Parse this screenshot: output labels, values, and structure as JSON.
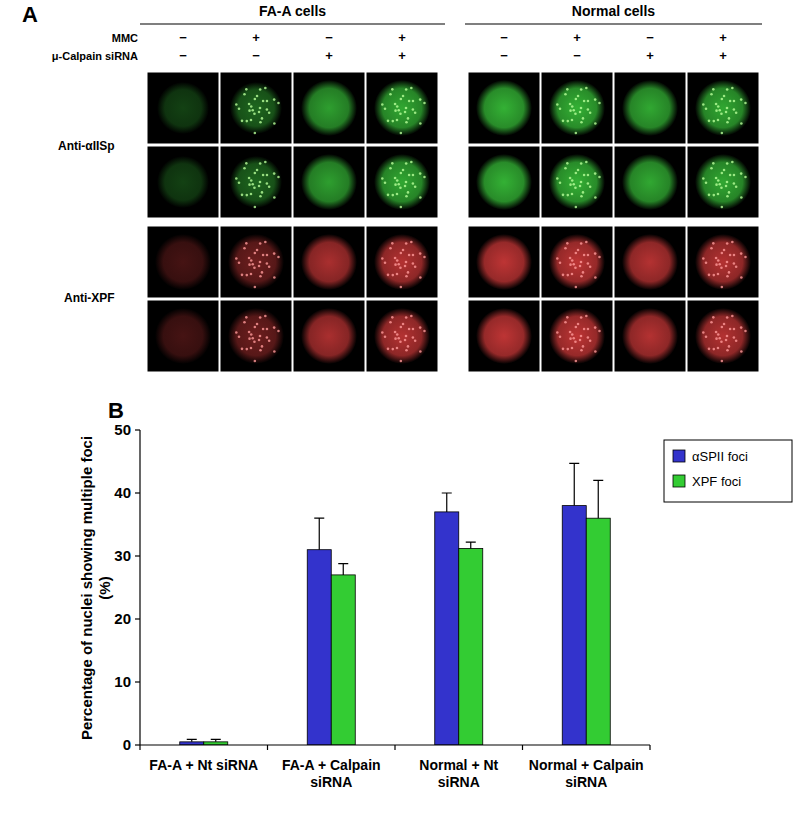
{
  "panel_labels": [
    "A",
    "B"
  ],
  "panel_a": {
    "groups": [
      "FA-A cells",
      "Normal cells"
    ],
    "conditions": [
      {
        "name": "MMC",
        "signs": [
          "−",
          "+",
          "−",
          "+",
          "−",
          "+",
          "−",
          "+"
        ]
      },
      {
        "name": "μ-Calpain siRNA",
        "signs": [
          "−",
          "−",
          "+",
          "+",
          "−",
          "−",
          "+",
          "+"
        ]
      }
    ],
    "stains": [
      "Anti-αIISp",
      "Anti-XPF"
    ]
  },
  "chart_data": {
    "type": "bar",
    "y_label": "Percentage of nuclei showing multiple foci (%)",
    "categories": [
      "FA-A + Nt siRNA",
      "FA-A + Calpain siRNA",
      "Normal + Nt siRNA",
      "Normal + Calpain siRNA"
    ],
    "series": [
      {
        "name": "αSPII foci",
        "color": "#3333cc",
        "values": [
          0.5,
          31,
          37,
          38
        ],
        "errors": [
          0.4,
          5,
          3,
          6.7
        ]
      },
      {
        "name": "XPF foci",
        "color": "#33cc33",
        "values": [
          0.5,
          27,
          31.2,
          36
        ],
        "errors": [
          0.4,
          1.8,
          1,
          6
        ]
      }
    ],
    "ylim": [
      0,
      50
    ],
    "yticks": [
      0,
      10,
      20,
      30,
      40,
      50
    ],
    "grid": false,
    "legend": "upper right"
  }
}
